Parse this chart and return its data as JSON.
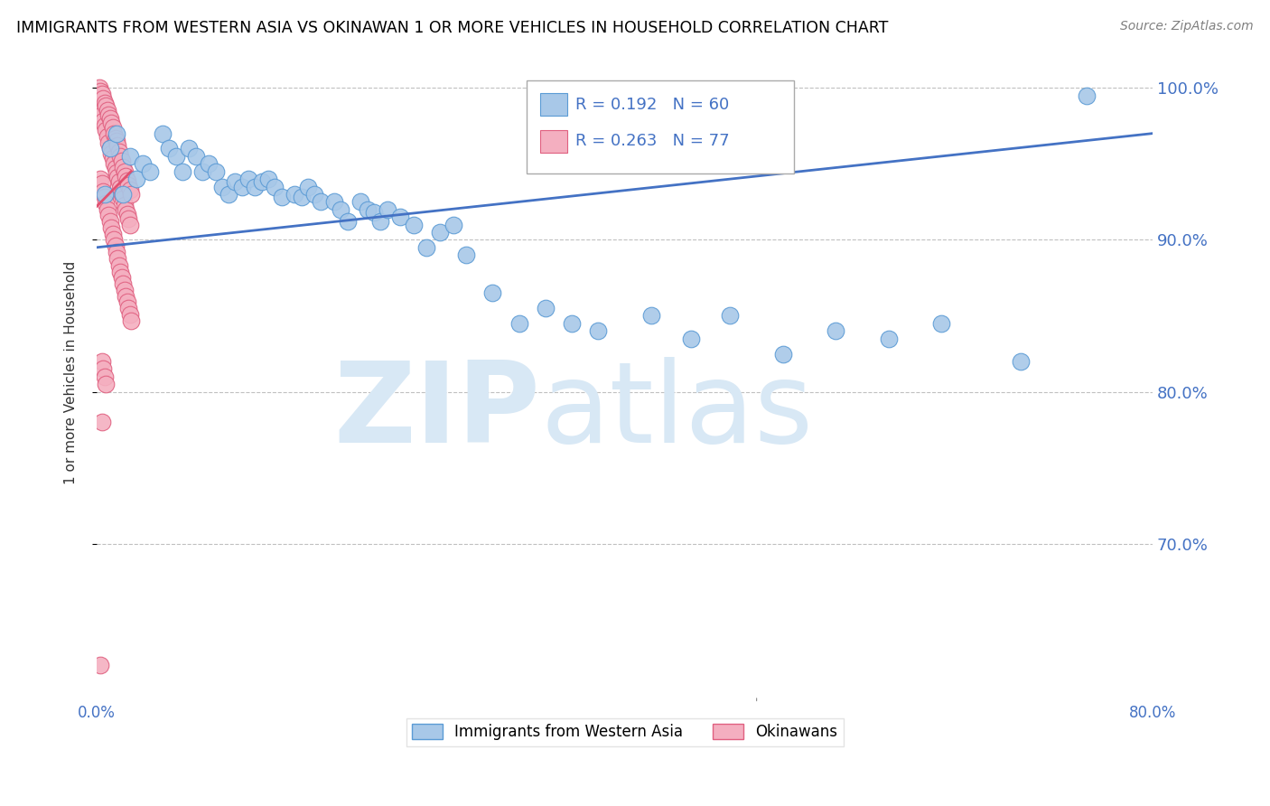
{
  "title": "IMMIGRANTS FROM WESTERN ASIA VS OKINAWAN 1 OR MORE VEHICLES IN HOUSEHOLD CORRELATION CHART",
  "source": "Source: ZipAtlas.com",
  "ylabel": "1 or more Vehicles in Household",
  "xmin": 0.0,
  "xmax": 0.8,
  "ymin": 0.6,
  "ymax": 1.025,
  "yticks": [
    0.7,
    0.8,
    0.9,
    1.0
  ],
  "ytick_labels": [
    "70.0%",
    "80.0%",
    "90.0%",
    "100.0%"
  ],
  "xticks": [
    0.0,
    0.1,
    0.2,
    0.3,
    0.4,
    0.5,
    0.6,
    0.7,
    0.8
  ],
  "xtick_labels": [
    "0.0%",
    "",
    "",
    "",
    "",
    "",
    "",
    "",
    "80.0%"
  ],
  "blue_color": "#a8c8e8",
  "pink_color": "#f4afc0",
  "blue_edge_color": "#5b9bd5",
  "pink_edge_color": "#e06080",
  "trend_blue_color": "#4472c4",
  "trend_pink_color": "#e05070",
  "legend_r_blue": "0.192",
  "legend_n_blue": "60",
  "legend_r_pink": "0.263",
  "legend_n_pink": "77",
  "blue_x": [
    0.006,
    0.01,
    0.015,
    0.02,
    0.025,
    0.03,
    0.035,
    0.04,
    0.05,
    0.055,
    0.06,
    0.065,
    0.07,
    0.075,
    0.08,
    0.085,
    0.09,
    0.095,
    0.1,
    0.105,
    0.11,
    0.115,
    0.12,
    0.125,
    0.13,
    0.135,
    0.14,
    0.15,
    0.155,
    0.16,
    0.165,
    0.17,
    0.18,
    0.185,
    0.19,
    0.2,
    0.205,
    0.21,
    0.215,
    0.22,
    0.23,
    0.24,
    0.25,
    0.26,
    0.27,
    0.28,
    0.3,
    0.32,
    0.34,
    0.36,
    0.38,
    0.42,
    0.45,
    0.48,
    0.52,
    0.56,
    0.6,
    0.64,
    0.7,
    0.75
  ],
  "blue_y": [
    0.93,
    0.96,
    0.97,
    0.93,
    0.955,
    0.94,
    0.95,
    0.945,
    0.97,
    0.96,
    0.955,
    0.945,
    0.96,
    0.955,
    0.945,
    0.95,
    0.945,
    0.935,
    0.93,
    0.938,
    0.935,
    0.94,
    0.935,
    0.938,
    0.94,
    0.935,
    0.928,
    0.93,
    0.928,
    0.935,
    0.93,
    0.925,
    0.925,
    0.92,
    0.912,
    0.925,
    0.92,
    0.918,
    0.912,
    0.92,
    0.915,
    0.91,
    0.895,
    0.905,
    0.91,
    0.89,
    0.865,
    0.845,
    0.855,
    0.845,
    0.84,
    0.85,
    0.835,
    0.85,
    0.825,
    0.84,
    0.835,
    0.845,
    0.82,
    0.995
  ],
  "pink_x": [
    0.002,
    0.003,
    0.003,
    0.004,
    0.004,
    0.005,
    0.005,
    0.006,
    0.006,
    0.007,
    0.007,
    0.008,
    0.008,
    0.009,
    0.009,
    0.01,
    0.01,
    0.011,
    0.011,
    0.012,
    0.012,
    0.013,
    0.013,
    0.014,
    0.014,
    0.015,
    0.015,
    0.016,
    0.016,
    0.017,
    0.017,
    0.018,
    0.018,
    0.019,
    0.019,
    0.02,
    0.02,
    0.021,
    0.021,
    0.022,
    0.022,
    0.023,
    0.023,
    0.024,
    0.024,
    0.025,
    0.025,
    0.026,
    0.003,
    0.004,
    0.005,
    0.006,
    0.007,
    0.008,
    0.009,
    0.01,
    0.011,
    0.012,
    0.013,
    0.014,
    0.015,
    0.016,
    0.017,
    0.018,
    0.019,
    0.02,
    0.021,
    0.022,
    0.023,
    0.024,
    0.025,
    0.026,
    0.004,
    0.005,
    0.006,
    0.007,
    0.004,
    0.003
  ],
  "pink_y": [
    1.0,
    0.998,
    0.985,
    0.996,
    0.982,
    0.993,
    0.978,
    0.99,
    0.975,
    0.988,
    0.972,
    0.985,
    0.968,
    0.982,
    0.964,
    0.98,
    0.96,
    0.977,
    0.957,
    0.974,
    0.954,
    0.97,
    0.95,
    0.967,
    0.947,
    0.965,
    0.944,
    0.962,
    0.941,
    0.958,
    0.938,
    0.955,
    0.934,
    0.952,
    0.93,
    0.948,
    0.927,
    0.945,
    0.923,
    0.942,
    0.92,
    0.939,
    0.917,
    0.936,
    0.914,
    0.933,
    0.91,
    0.93,
    0.94,
    0.937,
    0.932,
    0.928,
    0.924,
    0.92,
    0.916,
    0.912,
    0.908,
    0.904,
    0.9,
    0.896,
    0.892,
    0.888,
    0.883,
    0.879,
    0.875,
    0.871,
    0.867,
    0.863,
    0.859,
    0.855,
    0.851,
    0.847,
    0.82,
    0.815,
    0.81,
    0.805,
    0.78,
    0.62
  ],
  "watermark_zip": "ZIP",
  "watermark_atlas": "atlas",
  "watermark_color": "#d8e8f5",
  "background_color": "#ffffff",
  "axis_color": "#4472c4",
  "tick_color": "#4472c4",
  "grid_color": "#c0c0c0",
  "ylabel_color": "#333333",
  "title_color": "#000000",
  "source_color": "#808080"
}
